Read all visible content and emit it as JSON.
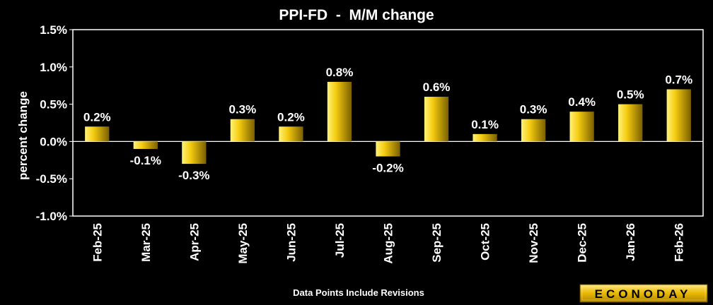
{
  "chart_data": {
    "type": "bar",
    "title": "PPI-FD  -  M/M change",
    "ylabel": "percent change",
    "xlabel": "",
    "categories": [
      "Feb-25",
      "Mar-25",
      "Apr-25",
      "May-25",
      "Jun-25",
      "Jul-25",
      "Aug-25",
      "Sep-25",
      "Oct-25",
      "Nov-25",
      "Dec-25",
      "Jan-26",
      "Feb-26"
    ],
    "values": [
      0.2,
      -0.1,
      -0.3,
      0.3,
      0.2,
      0.8,
      -0.2,
      0.6,
      0.1,
      0.3,
      0.4,
      0.5,
      0.7
    ],
    "data_labels": [
      "0.2%",
      "-0.1%",
      "-0.3%",
      "0.3%",
      "0.2%",
      "0.8%",
      "-0.2%",
      "0.6%",
      "0.1%",
      "0.3%",
      "0.4%",
      "0.5%",
      "0.7%"
    ],
    "ylim": [
      -1.0,
      1.5
    ],
    "yticks": [
      1.5,
      1.0,
      0.5,
      0.0,
      -0.5,
      -1.0
    ],
    "ytick_labels": [
      "1.5%",
      "1.0%",
      "0.5%",
      "0.0%",
      "-0.5%",
      "-1.0%"
    ],
    "grid": false,
    "legend": "none",
    "bar_color": "#f2c200"
  },
  "footnote": "Data Points Include Revisions",
  "logo": "ECONODAY",
  "colors": {
    "background": "#000000",
    "plot_border": "#ffffff",
    "accent": "#e8b800"
  }
}
